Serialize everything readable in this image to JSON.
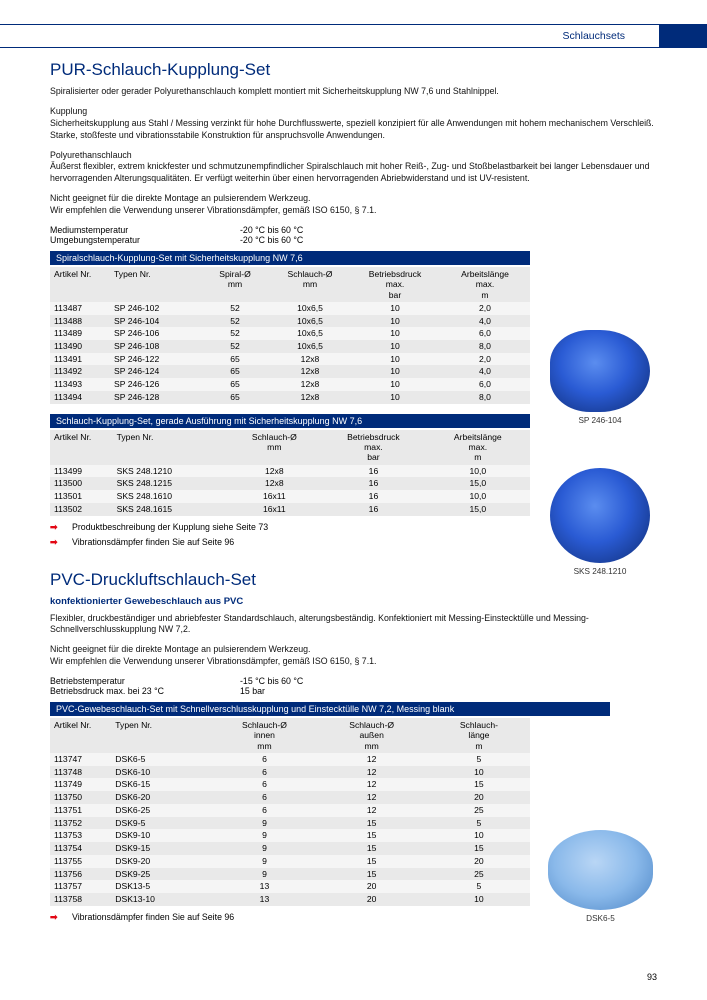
{
  "header": {
    "category": "Schlauchsets"
  },
  "section1": {
    "title": "PUR-Schlauch-Kupplung-Set",
    "intro": "Spiralisierter oder gerader Polyurethanschlauch komplett montiert mit Sicherheitskupplung NW 7,6 und Stahlnippel.",
    "para1_head": "Kupplung",
    "para1": "Sicherheitskupplung aus Stahl / Messing verzinkt für hohe Durchflusswerte, speziell konzipiert für alle Anwendungen mit hohem mechanischem Verschleiß.",
    "para1b": "Starke, stoßfeste und vibrationsstabile Konstruktion für anspruchsvolle Anwendungen.",
    "para2_head": "Polyurethanschlauch",
    "para2": "Äußerst flexibler, extrem knickfester und schmutzunempfindlicher Spiralschlauch mit hoher Reiß-, Zug- und Stoßbelastbarkeit bei langer Lebensdauer und hervorragenden Alterungsqualitäten. Er verfügt weiterhin über einen hervorragenden Abriebwiderstand und ist UV-resistent.",
    "para3": "Nicht geeignet für die direkte Montage an pulsierendem Werkzeug.",
    "para3b": "Wir empfehlen die Verwendung unserer Vibrationsdämpfer, gemäß ISO 6150, § 7.1.",
    "specs": [
      {
        "k": "Mediumstemperatur",
        "v": "-20 °C bis 60 °C"
      },
      {
        "k": "Umgebungstemperatur",
        "v": "-20 °C bis 60 °C"
      }
    ],
    "table1": {
      "header": "Spiralschlauch-Kupplung-Set mit Sicherheitskupplung NW 7,6",
      "columns": [
        {
          "t": "Artikel Nr.",
          "sub": ""
        },
        {
          "t": "Typen Nr.",
          "sub": ""
        },
        {
          "t": "Spiral-Ø",
          "sub": "mm"
        },
        {
          "t": "Schlauch-Ø",
          "sub": "mm"
        },
        {
          "t": "Betriebsdruck",
          "sub": "max.\nbar"
        },
        {
          "t": "Arbeitslänge",
          "sub": "max.\nm"
        }
      ],
      "rows": [
        [
          "113487",
          "SP 246-102",
          "52",
          "10x6,5",
          "10",
          "2,0"
        ],
        [
          "113488",
          "SP 246-104",
          "52",
          "10x6,5",
          "10",
          "4,0"
        ],
        [
          "113489",
          "SP 246-106",
          "52",
          "10x6,5",
          "10",
          "6,0"
        ],
        [
          "113490",
          "SP 246-108",
          "52",
          "10x6,5",
          "10",
          "8,0"
        ],
        [
          "113491",
          "SP 246-122",
          "65",
          "12x8",
          "10",
          "2,0"
        ],
        [
          "113492",
          "SP 246-124",
          "65",
          "12x8",
          "10",
          "4,0"
        ],
        [
          "113493",
          "SP 246-126",
          "65",
          "12x8",
          "10",
          "6,0"
        ],
        [
          "113494",
          "SP 246-128",
          "65",
          "12x8",
          "10",
          "8,0"
        ]
      ],
      "image_caption": "SP 246-104"
    },
    "table2": {
      "header": "Schlauch-Kupplung-Set, gerade Ausführung mit Sicherheitskupplung NW 7,6",
      "columns": [
        {
          "t": "Artikel Nr.",
          "sub": ""
        },
        {
          "t": "Typen Nr.",
          "sub": ""
        },
        {
          "t": "Schlauch-Ø",
          "sub": "mm"
        },
        {
          "t": "Betriebsdruck",
          "sub": "max.\nbar"
        },
        {
          "t": "Arbeitslänge",
          "sub": "max.\nm"
        }
      ],
      "rows": [
        [
          "113499",
          "SKS 248.1210",
          "12x8",
          "16",
          "10,0"
        ],
        [
          "113500",
          "SKS 248.1215",
          "12x8",
          "16",
          "15,0"
        ],
        [
          "113501",
          "SKS 248.1610",
          "16x11",
          "16",
          "10,0"
        ],
        [
          "113502",
          "SKS 248.1615",
          "16x11",
          "16",
          "15,0"
        ]
      ],
      "image_caption": "SKS 248.1210"
    },
    "notes": [
      "Produktbeschreibung der Kupplung siehe Seite 73",
      "Vibrationsdämpfer finden Sie auf Seite 96"
    ]
  },
  "section2": {
    "title": "PVC-Druckluftschlauch-Set",
    "subhead": "konfektionierter Gewebeschlauch aus PVC",
    "p1": "Flexibler, druckbeständiger und abriebfester Standardschlauch, alterungsbeständig. Konfektioniert mit Messing-Einstecktülle und Messing-Schnellverschlusskupplung NW 7,2.",
    "p2": "Nicht geeignet für die direkte Montage an pulsierendem Werkzeug.",
    "p2b": "Wir empfehlen die Verwendung unserer Vibrationsdämpfer, gemäß ISO 6150, § 7.1.",
    "specs": [
      {
        "k": "Betriebstemperatur",
        "v": "-15 °C bis 60 °C"
      },
      {
        "k": "Betriebsdruck max. bei 23 °C",
        "v": "15 bar"
      }
    ],
    "table": {
      "header": "PVC-Gewebeschlauch-Set mit Schnellverschlusskupplung und Einstecktülle NW 7,2, Messing blank",
      "columns": [
        {
          "t": "Artikel Nr.",
          "sub": ""
        },
        {
          "t": "Typen Nr.",
          "sub": ""
        },
        {
          "t": "Schlauch-Ø",
          "sub": "innen\nmm"
        },
        {
          "t": "Schlauch-Ø",
          "sub": "außen\nmm"
        },
        {
          "t": "Schlauch-",
          "sub": "länge\nm"
        }
      ],
      "rows": [
        [
          "113747",
          "DSK6-5",
          "6",
          "12",
          "5"
        ],
        [
          "113748",
          "DSK6-10",
          "6",
          "12",
          "10"
        ],
        [
          "113749",
          "DSK6-15",
          "6",
          "12",
          "15"
        ],
        [
          "113750",
          "DSK6-20",
          "6",
          "12",
          "20"
        ],
        [
          "113751",
          "DSK6-25",
          "6",
          "12",
          "25"
        ],
        [
          "113752",
          "DSK9-5",
          "9",
          "15",
          "5"
        ],
        [
          "113753",
          "DSK9-10",
          "9",
          "15",
          "10"
        ],
        [
          "113754",
          "DSK9-15",
          "9",
          "15",
          "15"
        ],
        [
          "113755",
          "DSK9-20",
          "9",
          "15",
          "20"
        ],
        [
          "113756",
          "DSK9-25",
          "9",
          "15",
          "25"
        ],
        [
          "113757",
          "DSK13-5",
          "13",
          "20",
          "5"
        ],
        [
          "113758",
          "DSK13-10",
          "13",
          "20",
          "10"
        ]
      ],
      "image_caption": "DSK6-5"
    },
    "notes": [
      "Vibrationsdämpfer finden Sie auf Seite 96"
    ]
  },
  "page_number": "93",
  "colors": {
    "brand": "#002b7a",
    "accent": "#e30613",
    "row_alt": "#e9e9e9",
    "row": "#f5f5f5"
  }
}
